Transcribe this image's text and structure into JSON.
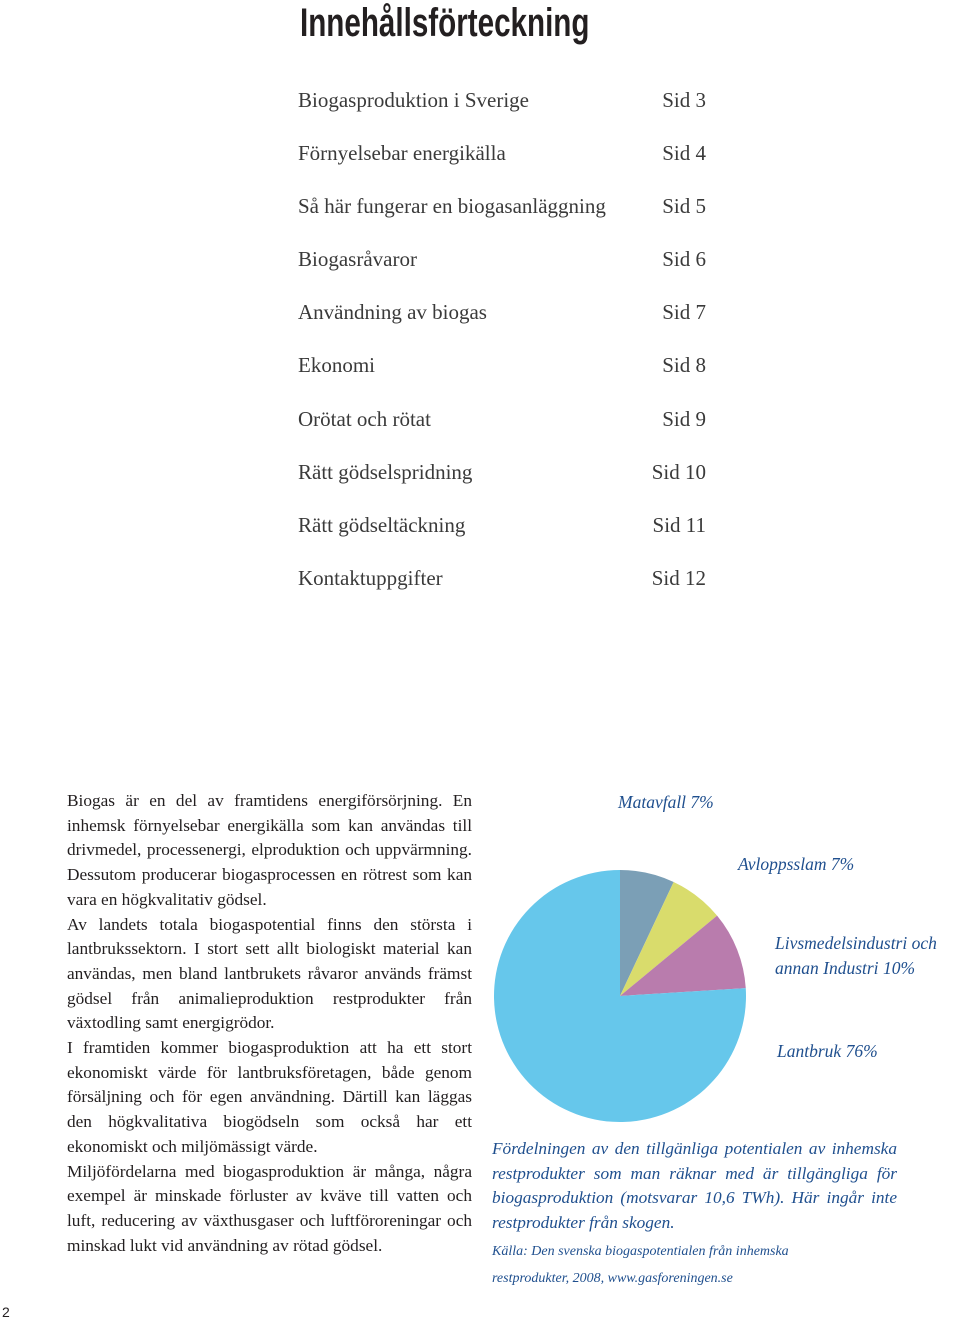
{
  "title": "Innehållsförteckning",
  "toc": [
    {
      "label": "Biogasproduktion i Sverige",
      "page": "Sid 3"
    },
    {
      "label": "Förnyelsebar energikälla",
      "page": "Sid 4"
    },
    {
      "label": "Så här fungerar en biogasanläggning",
      "page": "Sid 5"
    },
    {
      "label": "Biogasråvaror",
      "page": "Sid 6"
    },
    {
      "label": "Användning av biogas",
      "page": "Sid 7"
    },
    {
      "label": "Ekonomi",
      "page": "Sid 8"
    },
    {
      "label": "Orötat och rötat",
      "page": "Sid 9"
    },
    {
      "label": "Rätt gödselspridning",
      "page": "Sid 10"
    },
    {
      "label": "Rätt gödseltäckning",
      "page": "Sid 11"
    },
    {
      "label": "Kontaktuppgifter",
      "page": "Sid 12"
    }
  ],
  "body": [
    "Biogas är en del av framtidens energiförsörjning. En inhemsk förnyelsebar energikälla som kan användas till drivmedel, processenergi, elproduktion och uppvärmning. Dessutom producerar biogasprocessen en rötrest som kan vara en högkvalitativ gödsel.",
    "Av landets totala biogaspotential finns den största i lantbrukssektorn. I stort sett allt biologiskt material kan användas, men bland lantbrukets råvaror används främst gödsel från animalieproduktion restprodukter från växtodling samt energigrödor.",
    "I framtiden kommer biogasproduktion att ha ett stort ekonomiskt värde för lantbruksföretagen, både genom försäljning och för egen användning. Därtill kan läggas den högkvalitativa biogödseln som också har ett ekonomiskt och miljömässigt värde.",
    "Miljöfördelarna med biogasproduktion är många, några exempel är minskade förluster av kväve till vatten och luft, reducering av växthusgaser och luftföroreningar och minskad lukt vid användning av rötad gödsel."
  ],
  "chart_data": {
    "type": "pie",
    "categories": [
      "Matavfall",
      "Avloppsslam",
      "Livsmedelsindustri och annan Industri",
      "Lantbruk"
    ],
    "values": [
      7,
      7,
      10,
      76
    ],
    "value_labels": [
      "7%",
      "7%",
      "10%",
      "76%"
    ],
    "colors": [
      "#7b9fb6",
      "#d9dc6c",
      "#b97cad",
      "#66c7eb"
    ]
  },
  "caption": "Fördelningen av den tillgänliga potentialen av inhemska restprodukter som man räknar med är tillgängliga för biogasproduktion (motsvarar 10,6 TWh). Här ingår inte restprodukter från skogen.",
  "source": "Källa: Den svenska biogaspotentialen från inhemska restprodukter, 2008, www.gasforeningen.se",
  "page_number": "2"
}
